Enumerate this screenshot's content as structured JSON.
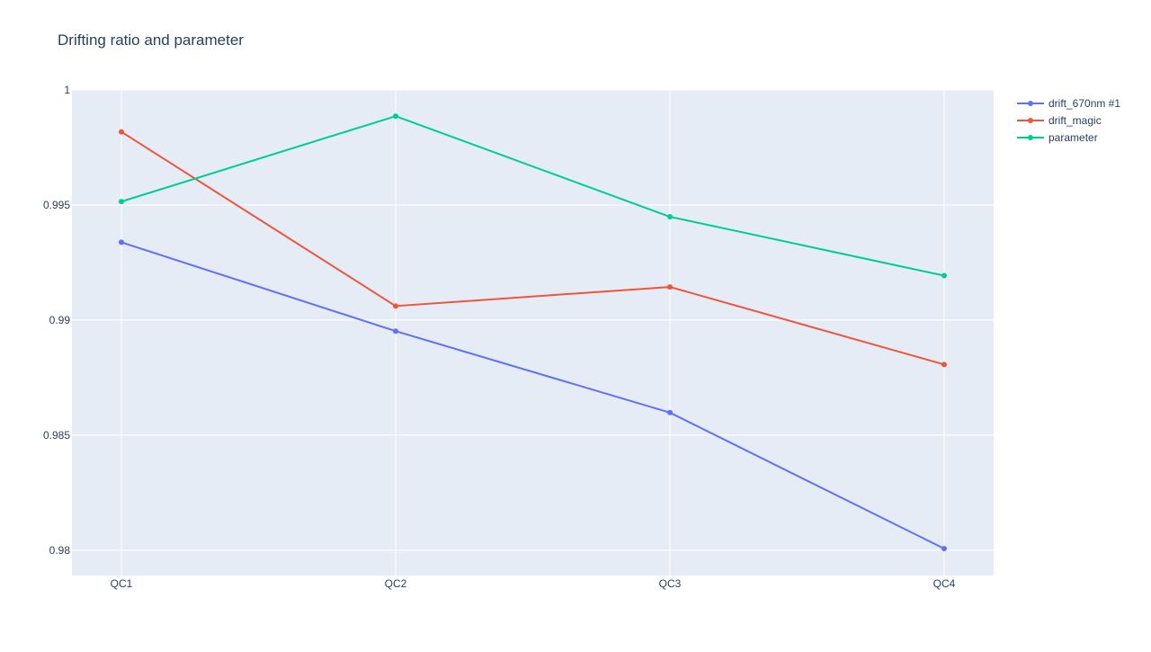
{
  "chart_data": {
    "type": "line",
    "title": "Drifting ratio and parameter",
    "xlabel": "",
    "ylabel": "",
    "categories": [
      "QC1",
      "QC2",
      "QC3",
      "QC4"
    ],
    "ylim": [
      0.9789,
      1.0
    ],
    "yticks": [
      {
        "value": 1.0,
        "label": "1"
      },
      {
        "value": 0.995,
        "label": "0.995"
      },
      {
        "value": 0.99,
        "label": "0.99"
      },
      {
        "value": 0.985,
        "label": "0.985"
      },
      {
        "value": 0.98,
        "label": "0.98"
      }
    ],
    "grid": true,
    "legend_position": "top-right",
    "background_color": "#e5ecf6",
    "series": [
      {
        "name": "drift_670nm #1",
        "color": "#636efa",
        "values": [
          0.99338,
          0.98952,
          0.98598,
          0.98007
        ]
      },
      {
        "name": "drift_magic",
        "color": "#ef553b",
        "values": [
          0.99818,
          0.99061,
          0.99144,
          0.98807
        ]
      },
      {
        "name": "parameter",
        "color": "#00cc96",
        "values": [
          0.99515,
          0.99886,
          0.99449,
          0.99193
        ]
      }
    ]
  }
}
